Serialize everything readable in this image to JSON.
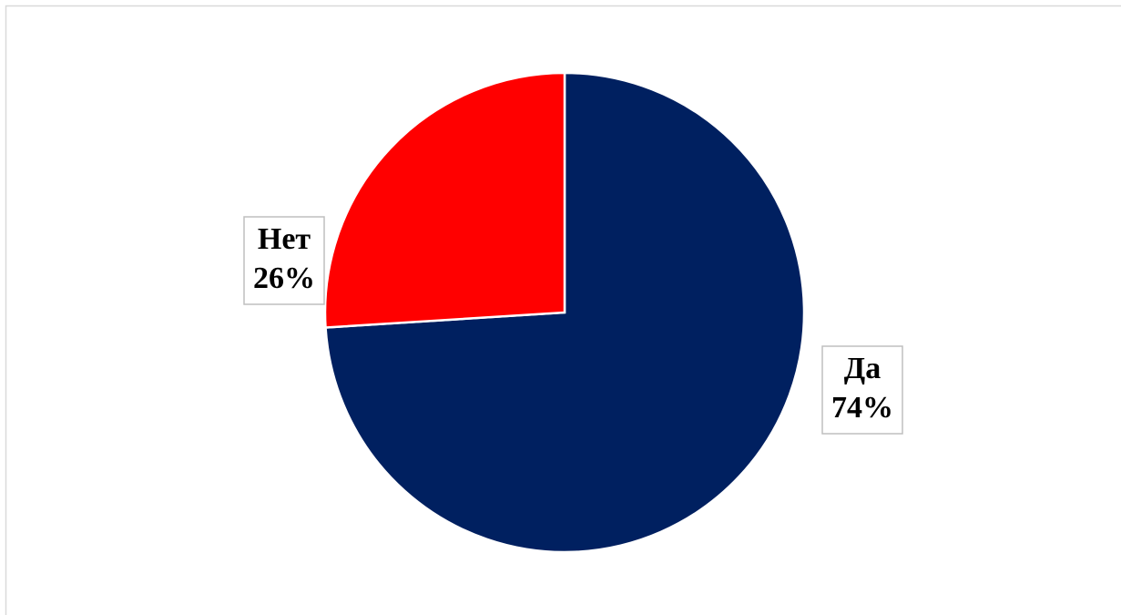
{
  "chart_data": {
    "type": "pie",
    "categories": [
      "Да",
      "Нет"
    ],
    "values": [
      74,
      26
    ],
    "value_labels": [
      "74%",
      "26%"
    ],
    "colors": [
      "#002060",
      "#ff0000"
    ]
  }
}
